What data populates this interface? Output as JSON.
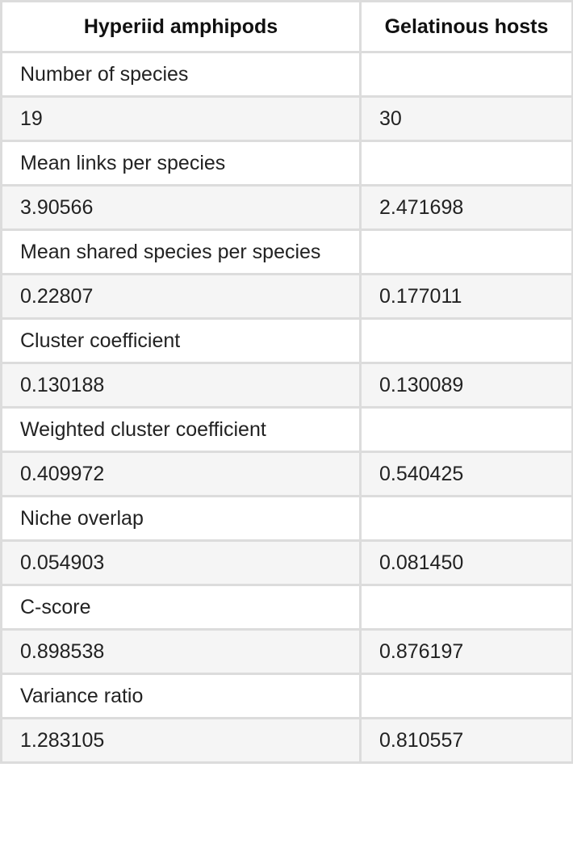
{
  "table": {
    "headers": [
      "Hyperiid amphipods",
      "Gelatinous hosts"
    ],
    "rows": [
      {
        "label": "Number of species",
        "values": [
          "19",
          "30"
        ]
      },
      {
        "label": "Mean links per species",
        "values": [
          "3.90566",
          "2.471698"
        ]
      },
      {
        "label": "Mean shared species per species",
        "values": [
          "0.22807",
          "0.177011"
        ]
      },
      {
        "label": "Cluster coefficient",
        "values": [
          "0.130188",
          "0.130089"
        ]
      },
      {
        "label": "Weighted cluster coefficient",
        "values": [
          "0.409972",
          "0.540425"
        ]
      },
      {
        "label": "Niche overlap",
        "values": [
          "0.054903",
          "0.081450"
        ]
      },
      {
        "label": "C-score",
        "values": [
          "0.898538",
          "0.876197"
        ]
      },
      {
        "label": "Variance ratio",
        "values": [
          "1.283105",
          "0.810557"
        ]
      }
    ]
  },
  "colors": {
    "border": "#dcdcdc",
    "striped_row": "#f5f5f5",
    "text": "#222222"
  }
}
